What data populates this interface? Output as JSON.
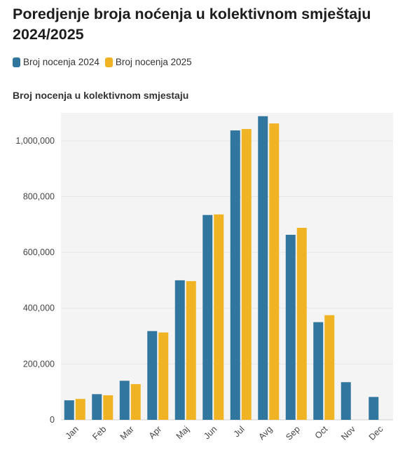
{
  "title": "Poredjenje broja noćenja u kolektivnom smještaju 2024/2025",
  "legend": [
    {
      "label": "Broj nocenja 2024",
      "color": "#31769e"
    },
    {
      "label": "Broj nocenja 2025",
      "color": "#f0b323"
    }
  ],
  "chart_heading": "Broj nocenja u kolektivnom smjestaju",
  "chart_data": {
    "type": "bar",
    "title": "Broj nocenja u kolektivnom smjestaju",
    "categories": [
      "Jan",
      "Feb",
      "Mar",
      "Apr",
      "Maj",
      "Jun",
      "Jul",
      "Avg",
      "Sep",
      "Oct",
      "Nov",
      "Dec"
    ],
    "series": [
      {
        "name": "Broj nocenja 2024",
        "color": "#31769e",
        "values": [
          70000,
          92000,
          140000,
          318000,
          500000,
          734000,
          1037000,
          1088000,
          663000,
          350000,
          135000,
          82000
        ]
      },
      {
        "name": "Broj nocenja 2025",
        "color": "#f0b323",
        "values": [
          75000,
          88000,
          128000,
          313000,
          497000,
          736000,
          1042000,
          1062000,
          688000,
          375000,
          null,
          null
        ]
      }
    ],
    "yticks": [
      0,
      200000,
      400000,
      600000,
      800000,
      1000000
    ],
    "ytick_labels": [
      "0",
      "200,000",
      "400,000",
      "600,000",
      "800,000",
      "1,000,000"
    ],
    "ylim": [
      0,
      1100000
    ],
    "grid": true,
    "legend_position": "top-left"
  }
}
